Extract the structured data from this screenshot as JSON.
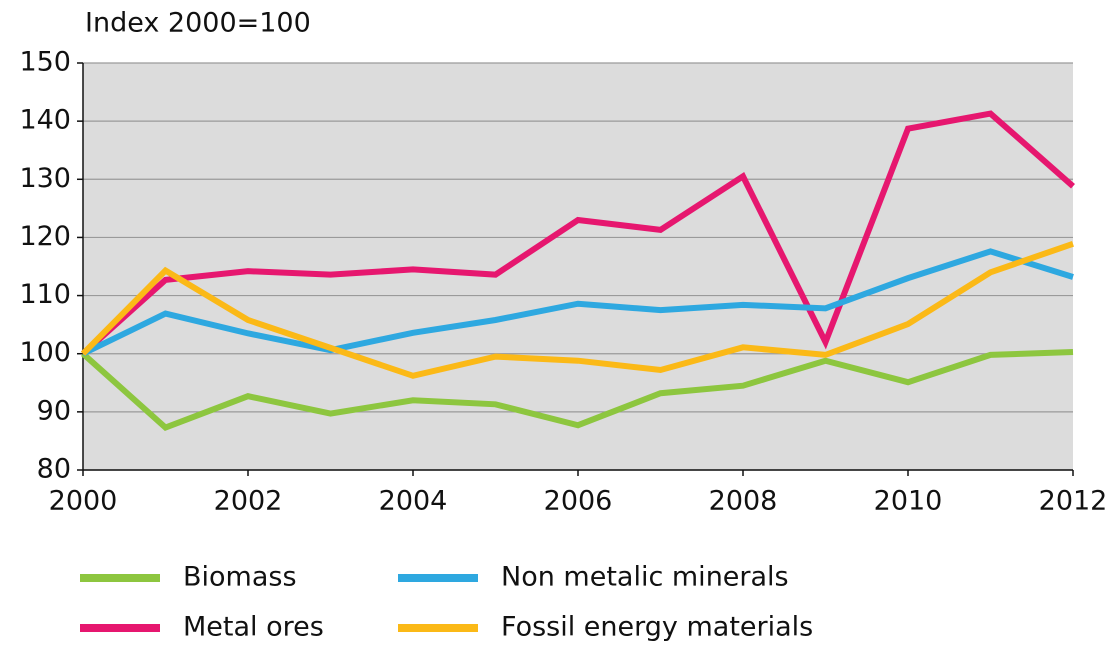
{
  "chart_data": {
    "type": "line",
    "y_label": "Index 2000=100",
    "x": [
      2000,
      2001,
      2002,
      2003,
      2004,
      2005,
      2006,
      2007,
      2008,
      2009,
      2010,
      2011,
      2012
    ],
    "series": [
      {
        "name": "Biomass",
        "color": "#8dc63f",
        "values": [
          100,
          87.3,
          92.7,
          89.7,
          92,
          91.3,
          87.7,
          93.2,
          94.5,
          98.8,
          95.1,
          99.8,
          100.3
        ]
      },
      {
        "name": "Metal ores",
        "color": "#e6176f",
        "values": [
          100,
          112.7,
          114.2,
          113.6,
          114.5,
          113.6,
          123,
          121.3,
          130.5,
          102,
          138.7,
          141.3,
          128.8
        ]
      },
      {
        "name": "Non metalic minerals",
        "color": "#2ea8e0",
        "values": [
          100,
          106.9,
          103.5,
          100.6,
          103.6,
          105.8,
          108.6,
          107.5,
          108.4,
          107.8,
          113,
          117.6,
          113.2
        ]
      },
      {
        "name": "Fossil energy materials",
        "color": "#fbb917",
        "values": [
          100,
          114.3,
          105.8,
          101,
          96.2,
          99.5,
          98.8,
          97.2,
          101.1,
          99.8,
          105.1,
          114,
          118.9
        ]
      }
    ],
    "xlim": [
      2000,
      2012
    ],
    "xticks": [
      2000,
      2002,
      2004,
      2006,
      2008,
      2010,
      2012
    ],
    "ylim": [
      80,
      150
    ],
    "yticks": [
      80,
      90,
      100,
      110,
      120,
      130,
      140,
      150
    ],
    "grid": true
  }
}
